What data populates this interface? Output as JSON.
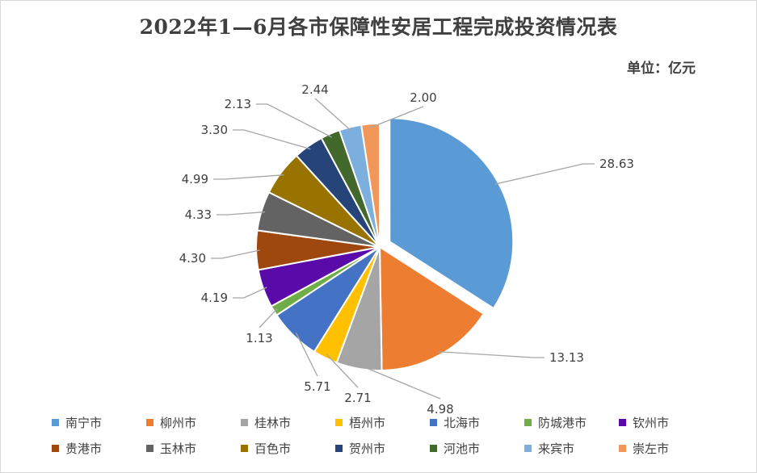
{
  "chart_data": {
    "type": "pie",
    "title": "2022年1—6月各市保障性安居工程完成投资情况表",
    "unit_label": "单位：亿元",
    "categories": [
      "南宁市",
      "柳州市",
      "桂林市",
      "梧州市",
      "北海市",
      "防城港市",
      "钦州市",
      "贵港市",
      "玉林市",
      "百色市",
      "贺州市",
      "河池市",
      "来宾市",
      "崇左市"
    ],
    "values": [
      28.63,
      13.13,
      4.98,
      2.71,
      5.71,
      1.13,
      4.19,
      4.3,
      4.33,
      4.99,
      3.3,
      2.13,
      2.44,
      2.0
    ],
    "value_labels": [
      "28.63",
      "13.13",
      "4.98",
      "2.71",
      "5.71",
      "1.13",
      "4.19",
      "4.30",
      "4.33",
      "4.99",
      "3.30",
      "2.13",
      "2.44",
      "2.00"
    ],
    "colors": [
      "#5b9bd5",
      "#ed7d31",
      "#a5a5a5",
      "#ffc000",
      "#4472c4",
      "#70ad47",
      "#5a0aa8",
      "#9e480e",
      "#636363",
      "#997300",
      "#264478",
      "#43682b",
      "#7cafdd",
      "#f1975a"
    ],
    "exploded": [
      "南宁市"
    ],
    "legend_position": "bottom"
  }
}
